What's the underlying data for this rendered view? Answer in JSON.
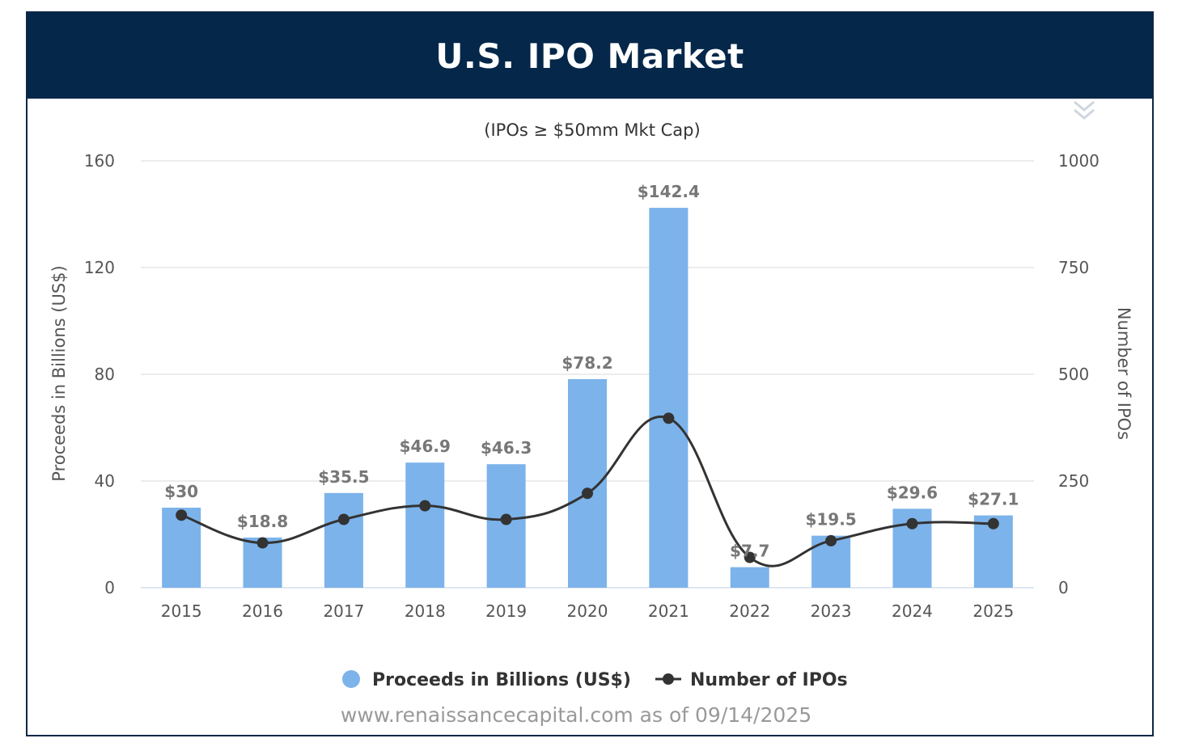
{
  "header": {
    "title": "U.S. IPO Market"
  },
  "colors": {
    "header_bg": "#04274a",
    "bar": "#7cb3ea",
    "line": "#333333",
    "grid": "#e0e0e0",
    "label": "#777777"
  },
  "menu": {
    "icon": "double-chevron-down-icon"
  },
  "chart_data": {
    "type": "bar",
    "title": "U.S. IPO Market",
    "subtitle": "(IPOs ≥ $50mm Mkt Cap)",
    "categories": [
      "2015",
      "2016",
      "2017",
      "2018",
      "2019",
      "2020",
      "2021",
      "2022",
      "2023",
      "2024",
      "2025"
    ],
    "series": [
      {
        "name": "Proceeds in Billions (US$)",
        "type": "bar",
        "axis": "left",
        "values": [
          30,
          18.8,
          35.5,
          46.9,
          46.3,
          78.2,
          142.4,
          7.7,
          19.5,
          29.6,
          27.1
        ],
        "data_labels": [
          "$30",
          "$18.8",
          "$35.5",
          "$46.9",
          "$46.3",
          "$78.2",
          "$142.4",
          "$7.7",
          "$19.5",
          "$29.6",
          "$27.1"
        ]
      },
      {
        "name": "Number of IPOs",
        "type": "line",
        "axis": "right",
        "values": [
          170,
          105,
          160,
          192,
          160,
          221,
          397,
          71,
          110,
          150,
          150
        ]
      }
    ],
    "ylabel": "Proceeds in Billions (US$)",
    "ylabel_right": "Number of IPOs",
    "ylim": [
      0,
      160
    ],
    "yticks": [
      0,
      40,
      80,
      120,
      160
    ],
    "ylim_right": [
      0,
      1000
    ],
    "yticks_right": [
      0,
      250,
      500,
      750,
      1000
    ],
    "grid": true,
    "legend_position": "bottom-center"
  },
  "footer": {
    "source": "www.renaissancecapital.com as of 09/14/2025"
  }
}
